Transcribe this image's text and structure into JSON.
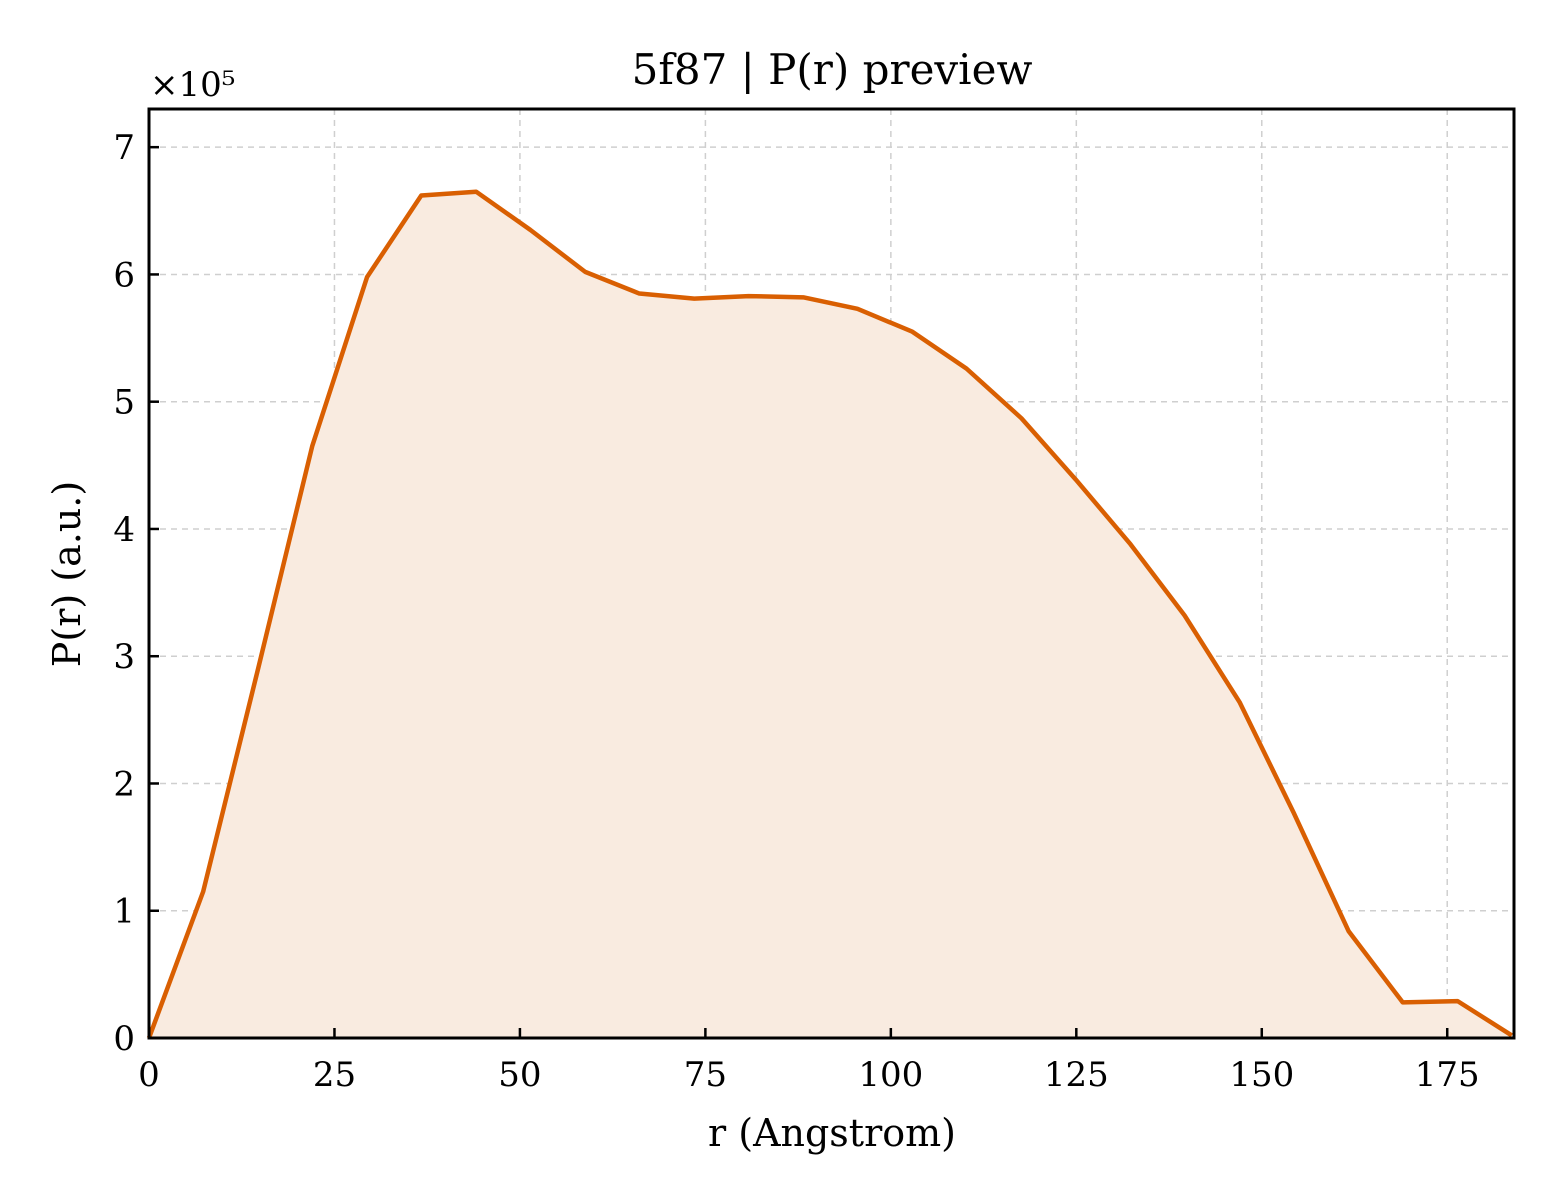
{
  "chart_data": {
    "type": "area",
    "title": "5f87 | P(r) preview",
    "xlabel": "r (Angstrom)",
    "ylabel": "P(r) (a.u.)",
    "y_multiplier_label": "×10⁵",
    "xlim": [
      0,
      184
    ],
    "ylim": [
      0,
      7.3
    ],
    "x_ticks": [
      0,
      25,
      50,
      75,
      100,
      125,
      150,
      175
    ],
    "y_ticks": [
      0,
      1,
      2,
      3,
      4,
      5,
      6,
      7
    ],
    "grid": true,
    "line_color": "#d95f02",
    "fill_color": "#f9ebe0",
    "series": [
      {
        "x": [
          0,
          7.3,
          14.7,
          22.0,
          29.4,
          36.7,
          44.1,
          51.4,
          58.8,
          66.1,
          73.5,
          80.8,
          88.2,
          95.5,
          102.9,
          110.2,
          117.6,
          124.9,
          132.3,
          139.6,
          147.0,
          154.3,
          161.7,
          169.0,
          176.4,
          183.7
        ],
        "y": [
          0,
          1.15,
          2.9,
          4.65,
          5.98,
          6.62,
          6.65,
          6.35,
          6.02,
          5.85,
          5.81,
          5.83,
          5.82,
          5.73,
          5.55,
          5.26,
          4.87,
          4.39,
          3.88,
          3.32,
          2.64,
          1.77,
          0.84,
          0.28,
          0.29,
          0.02
        ]
      }
    ]
  }
}
